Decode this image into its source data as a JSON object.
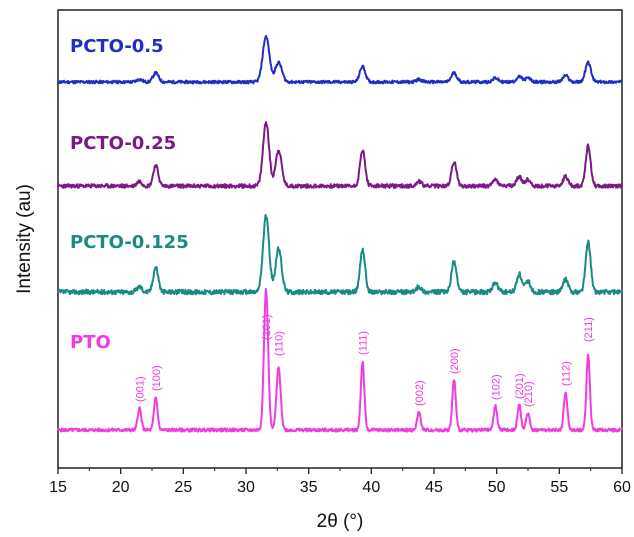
{
  "chart_data": {
    "type": "line",
    "xlabel": "2θ (°)",
    "ylabel": "Intensity (au)",
    "xlim": [
      15,
      60
    ],
    "xticks": [
      "15",
      "20",
      "25",
      "30",
      "35",
      "40",
      "45",
      "50",
      "55",
      "60"
    ],
    "grid": false,
    "legend": "series names printed at left above each trace",
    "y_units": "arbitrary (stacked)",
    "series": [
      {
        "name": "PCTO-0.5",
        "color": "#1f2fc4",
        "offset": 82,
        "scale": 0.65,
        "noise": 2.2,
        "width": 0.22,
        "seed": 11,
        "labels": false
      },
      {
        "name": "PCTO-0.25",
        "color": "#7a1a86",
        "offset": 186,
        "scale": 0.8,
        "noise": 2.4,
        "width": 0.2,
        "seed": 23,
        "labels": false
      },
      {
        "name": "PCTO-0.125",
        "color": "#1a8a82",
        "offset": 292,
        "scale": 0.9,
        "noise": 2.6,
        "width": 0.2,
        "seed": 37,
        "labels": false
      },
      {
        "name": "PTO",
        "color": "#f03ce0",
        "offset": 430,
        "scale": 1.0,
        "noise": 1.6,
        "width": 0.14,
        "seed": 5,
        "labels": true
      }
    ],
    "peaks": [
      {
        "label": "(001)",
        "x": 21.5,
        "PTO": 22,
        "PCTO-0.125": 6,
        "PCTO-0.25": 6,
        "PCTO-0.5": 4
      },
      {
        "label": "(100)",
        "x": 22.8,
        "PTO": 33,
        "PCTO-0.125": 28,
        "PCTO-0.25": 26,
        "PCTO-0.5": 14
      },
      {
        "label": "(101)",
        "x": 31.6,
        "PTO": 140,
        "PCTO-0.125": 85,
        "PCTO-0.25": 80,
        "PCTO-0.5": 70
      },
      {
        "label": "(110)",
        "x": 32.6,
        "PTO": 62,
        "PCTO-0.125": 48,
        "PCTO-0.25": 45,
        "PCTO-0.5": 30
      },
      {
        "label": "(111)",
        "x": 39.3,
        "PTO": 68,
        "PCTO-0.125": 48,
        "PCTO-0.25": 45,
        "PCTO-0.5": 24
      },
      {
        "label": "(002)",
        "x": 43.8,
        "PTO": 18,
        "PCTO-0.125": 6,
        "PCTO-0.25": 6,
        "PCTO-0.5": 4
      },
      {
        "label": "(200)",
        "x": 46.6,
        "PTO": 50,
        "PCTO-0.125": 34,
        "PCTO-0.25": 30,
        "PCTO-0.5": 14
      },
      {
        "label": "(102)",
        "x": 49.9,
        "PTO": 24,
        "PCTO-0.125": 10,
        "PCTO-0.25": 8,
        "PCTO-0.5": 6
      },
      {
        "label": "(201)",
        "x": 51.8,
        "PTO": 25,
        "PCTO-0.125": 20,
        "PCTO-0.25": 12,
        "PCTO-0.5": 8
      },
      {
        "label": "(210)",
        "x": 52.5,
        "PTO": 17,
        "PCTO-0.125": 12,
        "PCTO-0.25": 8,
        "PCTO-0.5": 6
      },
      {
        "label": "(112)",
        "x": 55.5,
        "PTO": 38,
        "PCTO-0.125": 14,
        "PCTO-0.25": 12,
        "PCTO-0.5": 10
      },
      {
        "label": "(211)",
        "x": 57.3,
        "PTO": 75,
        "PCTO-0.125": 55,
        "PCTO-0.25": 50,
        "PCTO-0.5": 30
      }
    ]
  }
}
